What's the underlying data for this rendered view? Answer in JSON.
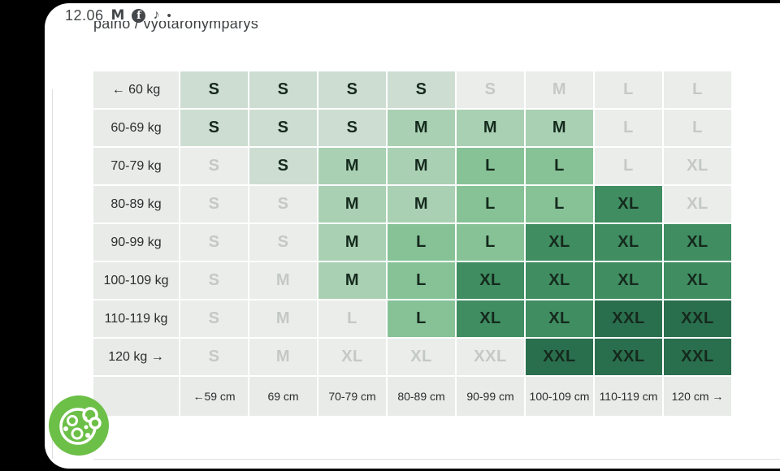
{
  "status_bar": {
    "time": "12.06",
    "icons": [
      {
        "name": "gmail-icon",
        "glyph": "M"
      },
      {
        "name": "facebook-icon",
        "glyph": "f"
      },
      {
        "name": "music-note-icon",
        "glyph": "♪"
      },
      {
        "name": "notification-dot-icon",
        "glyph": "•"
      }
    ]
  },
  "page": {
    "clipped_title": "paino / vyötärönympärys"
  },
  "size_table": {
    "rows": [
      {
        "label": "← 60 kg",
        "cells": [
          {
            "size": "S",
            "active": true
          },
          {
            "size": "S",
            "active": true
          },
          {
            "size": "S",
            "active": true
          },
          {
            "size": "S",
            "active": true
          },
          {
            "size": "S",
            "active": false
          },
          {
            "size": "M",
            "active": false
          },
          {
            "size": "L",
            "active": false
          },
          {
            "size": "L",
            "active": false
          }
        ]
      },
      {
        "label": "60-69 kg",
        "cells": [
          {
            "size": "S",
            "active": true
          },
          {
            "size": "S",
            "active": true
          },
          {
            "size": "S",
            "active": true
          },
          {
            "size": "M",
            "active": true
          },
          {
            "size": "M",
            "active": true
          },
          {
            "size": "M",
            "active": true
          },
          {
            "size": "L",
            "active": false
          },
          {
            "size": "L",
            "active": false
          }
        ]
      },
      {
        "label": "70-79 kg",
        "cells": [
          {
            "size": "S",
            "active": false
          },
          {
            "size": "S",
            "active": true
          },
          {
            "size": "M",
            "active": true
          },
          {
            "size": "M",
            "active": true
          },
          {
            "size": "L",
            "active": true
          },
          {
            "size": "L",
            "active": true
          },
          {
            "size": "L",
            "active": false
          },
          {
            "size": "XL",
            "active": false
          }
        ]
      },
      {
        "label": "80-89 kg",
        "cells": [
          {
            "size": "S",
            "active": false
          },
          {
            "size": "S",
            "active": false
          },
          {
            "size": "M",
            "active": true
          },
          {
            "size": "M",
            "active": true
          },
          {
            "size": "L",
            "active": true
          },
          {
            "size": "L",
            "active": true
          },
          {
            "size": "XL",
            "active": true
          },
          {
            "size": "XL",
            "active": false
          }
        ]
      },
      {
        "label": "90-99 kg",
        "cells": [
          {
            "size": "S",
            "active": false
          },
          {
            "size": "S",
            "active": false
          },
          {
            "size": "M",
            "active": true
          },
          {
            "size": "L",
            "active": true
          },
          {
            "size": "L",
            "active": true
          },
          {
            "size": "XL",
            "active": true
          },
          {
            "size": "XL",
            "active": true
          },
          {
            "size": "XL",
            "active": true
          }
        ]
      },
      {
        "label": "100-109 kg",
        "cells": [
          {
            "size": "S",
            "active": false
          },
          {
            "size": "M",
            "active": false
          },
          {
            "size": "M",
            "active": true
          },
          {
            "size": "L",
            "active": true
          },
          {
            "size": "XL",
            "active": true
          },
          {
            "size": "XL",
            "active": true
          },
          {
            "size": "XL",
            "active": true
          },
          {
            "size": "XL",
            "active": true
          }
        ]
      },
      {
        "label": "110-119 kg",
        "cells": [
          {
            "size": "S",
            "active": false
          },
          {
            "size": "M",
            "active": false
          },
          {
            "size": "L",
            "active": false
          },
          {
            "size": "L",
            "active": true
          },
          {
            "size": "XL",
            "active": true
          },
          {
            "size": "XL",
            "active": true
          },
          {
            "size": "XXL",
            "active": true
          },
          {
            "size": "XXL",
            "active": true
          }
        ]
      },
      {
        "label": "120 kg →",
        "cells": [
          {
            "size": "S",
            "active": false
          },
          {
            "size": "M",
            "active": false
          },
          {
            "size": "XL",
            "active": false
          },
          {
            "size": "XL",
            "active": false
          },
          {
            "size": "XXL",
            "active": false
          },
          {
            "size": "XXL",
            "active": true
          },
          {
            "size": "XXL",
            "active": true
          },
          {
            "size": "XXL",
            "active": true
          }
        ]
      }
    ],
    "footer": [
      "",
      "←59 cm",
      "69 cm",
      "70-79 cm",
      "80-89 cm",
      "90-99 cm",
      "100-109 cm",
      "110-119 cm",
      "120 cm →"
    ]
  },
  "colors": {
    "size_s": "#cdddd2",
    "size_m": "#a9d0b3",
    "size_l": "#86c296",
    "size_xl": "#3f8d61",
    "size_xxl": "#2a6f4d",
    "active_text": "#15291d",
    "inactive_bg": "#eaedea",
    "inactive_text": "#c4c9c5",
    "header_bg": "#e8ebe8",
    "label_text": "#2b2d2e",
    "divider": "#dedede",
    "screen_bg": "#ffffff",
    "phone_frame": "#000000",
    "cookie_green": "#6cbf47"
  }
}
